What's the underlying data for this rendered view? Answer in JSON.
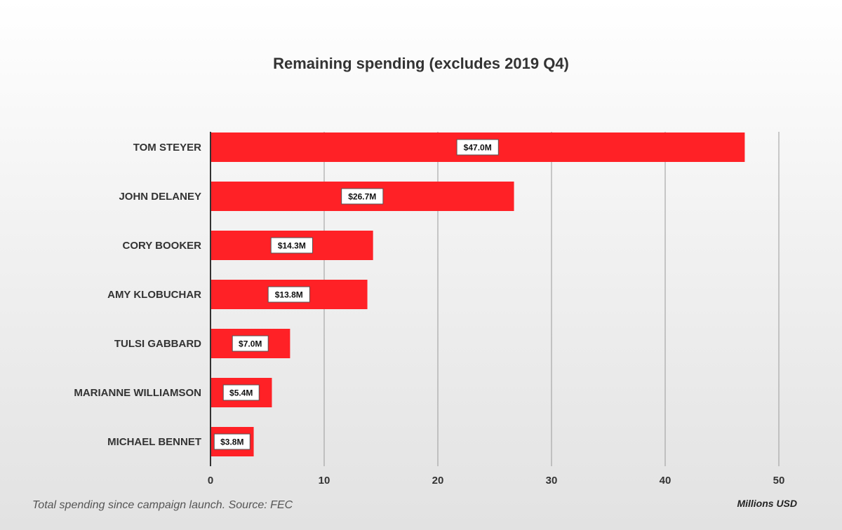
{
  "chart_data": {
    "type": "bar",
    "orientation": "horizontal",
    "title": "Remaining spending (excludes 2019 Q4)",
    "categories": [
      "TOM STEYER",
      "JOHN DELANEY",
      "CORY BOOKER",
      "AMY KLOBUCHAR",
      "TULSI GABBARD",
      "MARIANNE WILLIAMSON",
      "MICHAEL BENNET"
    ],
    "values": [
      47.0,
      26.7,
      14.3,
      13.8,
      7.0,
      5.4,
      3.8
    ],
    "data_labels": [
      "$47.0M",
      "$26.7M",
      "$14.3M",
      "$13.8M",
      "$7.0M",
      "$5.4M",
      "$3.8M"
    ],
    "xlabel": "Millions USD",
    "xlim": [
      0,
      50
    ],
    "xticks": [
      0,
      10,
      20,
      30,
      40,
      50
    ],
    "grid": true,
    "note": "Total spending since campaign launch. Source: FEC",
    "bar_color": "#ff2126"
  }
}
